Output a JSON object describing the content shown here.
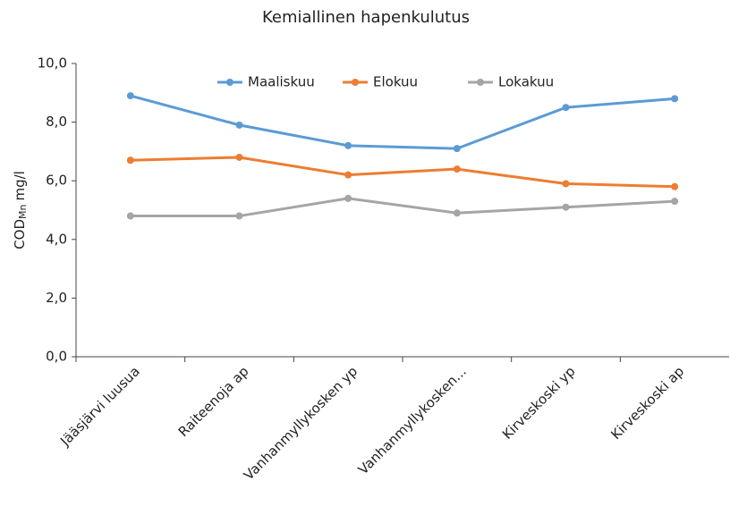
{
  "chart_data": {
    "type": "line",
    "title": "Kemiallinen hapenkulutus",
    "y_label": {
      "text": "COD",
      "subscript": "Mn",
      "unit": "mg/l"
    },
    "categories": [
      "Jääsjärvi luusua",
      "Raiteenoja ap",
      "Vanhanmyllykosken yp",
      "Vanhanmyllykosken...",
      "Kirveskoski yp",
      "Kirveskoski ap"
    ],
    "series": [
      {
        "name": "Maaliskuu",
        "color": "#5b9bd5",
        "values": [
          8.9,
          7.9,
          7.2,
          7.1,
          8.5,
          8.8
        ]
      },
      {
        "name": "Elokuu",
        "color": "#ed7d31",
        "values": [
          6.7,
          6.8,
          6.2,
          6.4,
          5.9,
          5.8
        ]
      },
      {
        "name": "Lokakuu",
        "color": "#a5a5a5",
        "values": [
          4.8,
          4.8,
          5.4,
          4.9,
          5.1,
          5.3
        ]
      }
    ],
    "ylim": [
      0,
      10
    ],
    "yticks": [
      {
        "value": 0,
        "label": "0,0"
      },
      {
        "value": 2,
        "label": "2,0"
      },
      {
        "value": 4,
        "label": "4,0"
      },
      {
        "value": 6,
        "label": "6,0"
      },
      {
        "value": 8,
        "label": "8,0"
      },
      {
        "value": 10,
        "label": "10,0"
      }
    ],
    "legend": "top"
  }
}
